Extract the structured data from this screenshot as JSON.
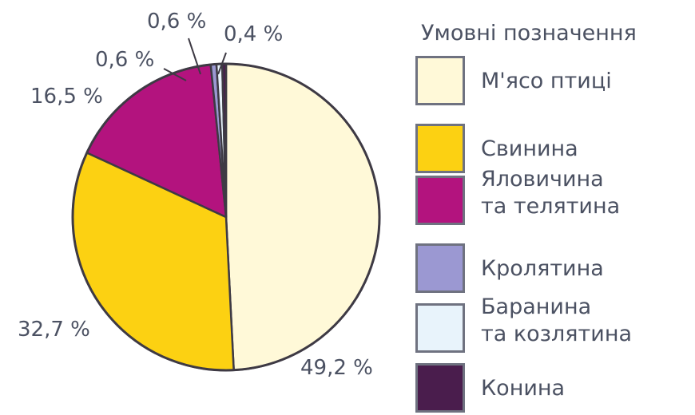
{
  "chart_data": {
    "type": "pie",
    "slices": [
      {
        "name": "М'ясо птиці",
        "value": 49.2,
        "label": "49,2 %",
        "color": "#fff9d8"
      },
      {
        "name": "Свинина",
        "value": 32.7,
        "label": "32,7 %",
        "color": "#fcd112"
      },
      {
        "name": "Яловичина\nта телятина",
        "value": 16.5,
        "label": "16,5 %",
        "color": "#b3137e"
      },
      {
        "name": "Кролятина",
        "value": 0.6,
        "label": "0,6 %",
        "color": "#9b98d2"
      },
      {
        "name": "Баранина\nта козлятина",
        "value": 0.6,
        "label": "0,6 %",
        "color": "#e8f3fb"
      },
      {
        "name": "Конина",
        "value": 0.4,
        "label": "0,4 %",
        "color": "#4a1d4d"
      }
    ],
    "legend_title": "Умовні позначення",
    "legend_placement": "right"
  }
}
